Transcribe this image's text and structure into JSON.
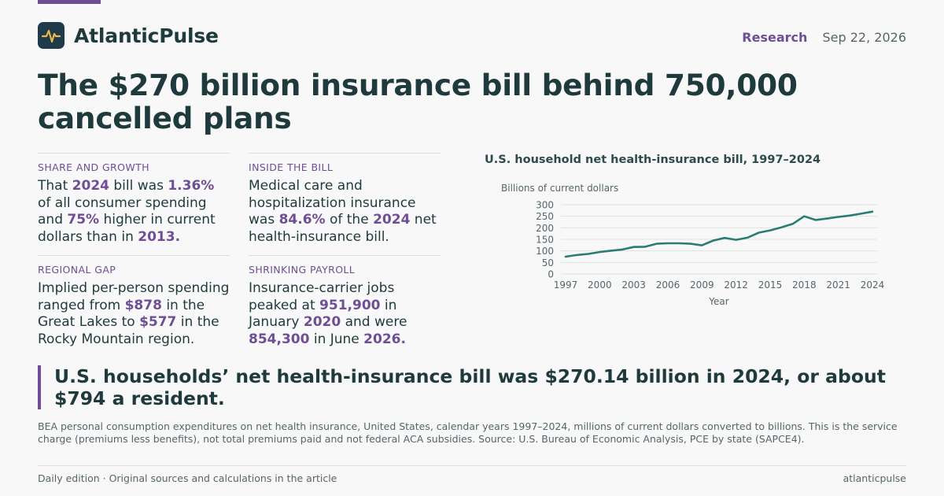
{
  "brand": {
    "name": "AtlanticPulse",
    "logo_icon": "pulse-icon"
  },
  "header": {
    "section": "Research",
    "date": "Sep 22, 2026"
  },
  "headline": "The $270 billion insurance bill behind 750,000 cancelled plans",
  "stats": [
    {
      "label": "Share and growth",
      "parts": [
        "That ",
        "2024",
        " bill was ",
        "1.36%",
        " of all consumer spending and ",
        "75%",
        " higher in current dollars than in ",
        "2013."
      ]
    },
    {
      "label": "Inside the bill",
      "parts": [
        "Medical care and hospitalization insurance was ",
        "84.6%",
        " of the ",
        "2024",
        " net health-insurance bill."
      ]
    },
    {
      "label": "Regional gap",
      "parts": [
        "Implied per-person spending ranged from ",
        "$878",
        " in the Great Lakes to ",
        "$577",
        " in the Rocky Mountain region."
      ]
    },
    {
      "label": "Shrinking payroll",
      "parts": [
        "Insurance-carrier jobs peaked at ",
        "951,900",
        " in January ",
        "2020",
        " and were ",
        "854,300",
        " in June ",
        "2026."
      ]
    }
  ],
  "chart_data": {
    "type": "line",
    "title": "U.S. household net health-insurance bill, 1997–2024",
    "ylabel": "Billions of current dollars",
    "xlabel": "Year",
    "x": [
      1997,
      1998,
      1999,
      2000,
      2001,
      2002,
      2003,
      2004,
      2005,
      2006,
      2007,
      2008,
      2009,
      2010,
      2011,
      2012,
      2013,
      2014,
      2015,
      2016,
      2017,
      2018,
      2019,
      2020,
      2021,
      2022,
      2023,
      2024
    ],
    "series": [
      {
        "values": [
          75,
          82,
          87,
          95,
          101,
          106,
          117,
          118,
          131,
          133,
          133,
          131,
          124,
          145,
          156,
          148,
          157,
          179,
          189,
          202,
          217,
          250,
          234,
          240,
          247,
          253,
          261,
          270
        ]
      }
    ],
    "ylim": [
      0,
      300
    ],
    "xlim": [
      1997,
      2024
    ],
    "yticks": [
      0,
      50,
      100,
      150,
      200,
      250,
      300
    ],
    "xticks": [
      1997,
      2000,
      2003,
      2006,
      2009,
      2012,
      2015,
      2018,
      2021,
      2024
    ],
    "grid": true,
    "line_color": "#2a7d72"
  },
  "callout": "U.S. households’ net health-insurance bill was $270.14 billion in 2024, or about $794 a resident.",
  "note": "BEA personal consumption expenditures on net health insurance, United States, calendar years 1997–2024, millions of current dollars converted to billions. This is the service charge (premiums less benefits), not total premiums paid and not federal ACA subsidies. Source: U.S. Bureau of Economic Analysis, PCE by state (SAPCE4).",
  "footer": {
    "left": "Daily edition · Original sources and calculations in the article",
    "right": "atlanticpulse"
  },
  "colors": {
    "accent": "#6f4e96",
    "text": "#1f3a3d",
    "muted": "#56656a",
    "line": "#2a7d72",
    "logo_bg": "#1f3a4a",
    "logo_stroke": "#e6b94a"
  }
}
